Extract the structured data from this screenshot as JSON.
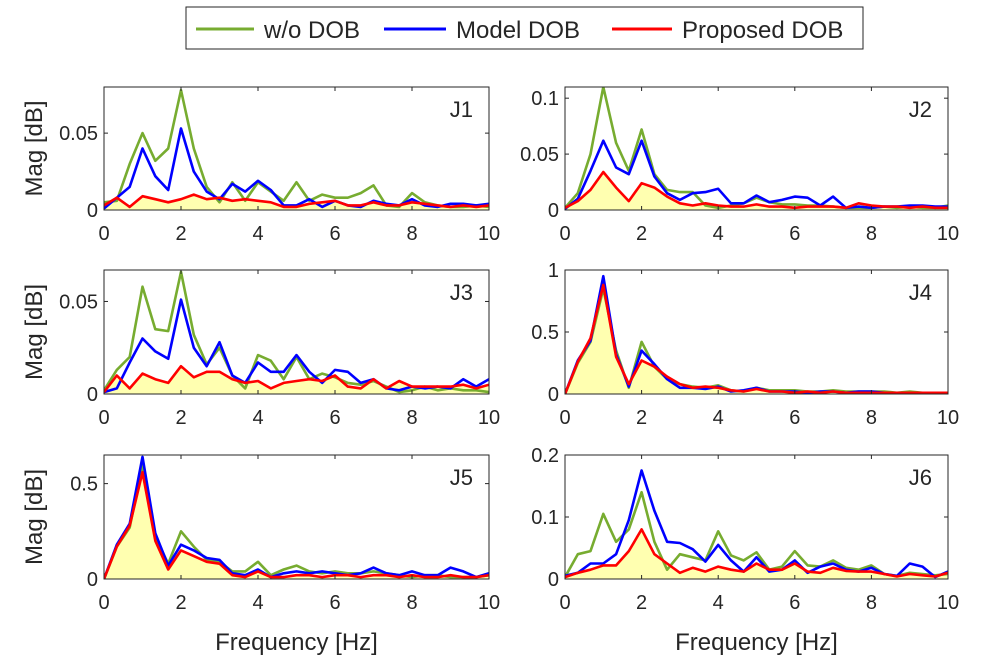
{
  "legend": {
    "entries": [
      {
        "name": "w/o DOB",
        "color": "#77AC30"
      },
      {
        "name": "Model DOB",
        "color": "#0000FF"
      },
      {
        "name": "Proposed DOB",
        "color": "#FF0000"
      }
    ]
  },
  "fill_color": "#FFFFB0",
  "chart_data": [
    {
      "type": "line",
      "panel": "J1",
      "ylabel": "Mag [dB]",
      "xlabel": "",
      "xlim": [
        0,
        10
      ],
      "ylim": [
        0,
        0.08
      ],
      "xticks": [
        0,
        2,
        4,
        6,
        8,
        10
      ],
      "yticks": [
        0,
        0.05
      ],
      "ytick_labels": [
        "0",
        "0.05"
      ],
      "x": [
        0,
        0.333,
        0.667,
        1,
        1.333,
        1.667,
        2,
        2.333,
        2.667,
        3,
        3.333,
        3.667,
        4,
        4.333,
        4.667,
        5,
        5.333,
        5.667,
        6,
        6.333,
        6.667,
        7,
        7.333,
        7.667,
        8,
        8.333,
        8.667,
        9,
        9.333,
        9.667,
        10
      ],
      "series": [
        {
          "name": "w/o DOB",
          "values": [
            0.005,
            0.006,
            0.03,
            0.05,
            0.032,
            0.04,
            0.078,
            0.04,
            0.015,
            0.005,
            0.018,
            0.006,
            0.018,
            0.012,
            0.006,
            0.018,
            0.006,
            0.01,
            0.008,
            0.008,
            0.011,
            0.016,
            0.003,
            0.002,
            0.011,
            0.005,
            0.003,
            0.002,
            0.002,
            0.003,
            0.002
          ]
        },
        {
          "name": "Model DOB",
          "values": [
            0.001,
            0.008,
            0.015,
            0.04,
            0.022,
            0.013,
            0.053,
            0.025,
            0.012,
            0.007,
            0.017,
            0.012,
            0.019,
            0.013,
            0.003,
            0.003,
            0.007,
            0.002,
            0.006,
            0.003,
            0.002,
            0.006,
            0.004,
            0.003,
            0.007,
            0.003,
            0.002,
            0.004,
            0.004,
            0.003,
            0.004
          ]
        },
        {
          "name": "Proposed DOB",
          "values": [
            0.003,
            0.008,
            0.002,
            0.009,
            0.007,
            0.005,
            0.007,
            0.01,
            0.007,
            0.008,
            0.006,
            0.007,
            0.006,
            0.005,
            0.002,
            0.002,
            0.004,
            0.005,
            0.006,
            0.003,
            0.003,
            0.005,
            0.003,
            0.003,
            0.005,
            0.004,
            0.003,
            0.002,
            0.003,
            0.002,
            0.003
          ]
        }
      ]
    },
    {
      "type": "line",
      "panel": "J2",
      "ylabel": "",
      "xlabel": "",
      "xlim": [
        0,
        10
      ],
      "ylim": [
        0,
        0.11
      ],
      "xticks": [
        0,
        2,
        4,
        6,
        8,
        10
      ],
      "yticks": [
        0,
        0.05,
        0.1
      ],
      "ytick_labels": [
        "0",
        "0.05",
        "0.1"
      ],
      "x": [
        0,
        0.333,
        0.667,
        1,
        1.333,
        1.667,
        2,
        2.333,
        2.667,
        3,
        3.333,
        3.667,
        4,
        4.333,
        4.667,
        5,
        5.333,
        5.667,
        6,
        6.333,
        6.667,
        7,
        7.333,
        7.667,
        8,
        8.333,
        8.667,
        9,
        9.333,
        9.667,
        10
      ],
      "series": [
        {
          "name": "w/o DOB",
          "values": [
            0.002,
            0.015,
            0.05,
            0.11,
            0.06,
            0.035,
            0.072,
            0.032,
            0.018,
            0.016,
            0.016,
            0.004,
            0.002,
            0.004,
            0.006,
            0.011,
            0.007,
            0.005,
            0.005,
            0.004,
            0.004,
            0.003,
            0.002,
            0.002,
            0.002,
            0.003,
            0.002,
            0.003,
            0.002,
            0.002,
            0.004
          ]
        },
        {
          "name": "Model DOB",
          "values": [
            0.001,
            0.01,
            0.035,
            0.062,
            0.038,
            0.032,
            0.062,
            0.03,
            0.015,
            0.009,
            0.015,
            0.016,
            0.019,
            0.006,
            0.006,
            0.013,
            0.007,
            0.009,
            0.012,
            0.011,
            0.004,
            0.012,
            0.002,
            0.003,
            0.002,
            0.003,
            0.003,
            0.004,
            0.004,
            0.003,
            0.003
          ]
        },
        {
          "name": "Proposed DOB",
          "values": [
            0.002,
            0.008,
            0.018,
            0.034,
            0.02,
            0.008,
            0.024,
            0.02,
            0.012,
            0.006,
            0.004,
            0.006,
            0.004,
            0.003,
            0.003,
            0.005,
            0.003,
            0.003,
            0.002,
            0.003,
            0.003,
            0.003,
            0.002,
            0.006,
            0.004,
            0.003,
            0.003,
            0.002,
            0.003,
            0.002,
            0.002
          ]
        }
      ]
    },
    {
      "type": "line",
      "panel": "J3",
      "ylabel": "Mag [dB]",
      "xlabel": "",
      "xlim": [
        0,
        10
      ],
      "ylim": [
        0,
        0.067
      ],
      "xticks": [
        0,
        2,
        4,
        6,
        8,
        10
      ],
      "yticks": [
        0,
        0.05
      ],
      "ytick_labels": [
        "0",
        "0.05"
      ],
      "x": [
        0,
        0.333,
        0.667,
        1,
        1.333,
        1.667,
        2,
        2.333,
        2.667,
        3,
        3.333,
        3.667,
        4,
        4.333,
        4.667,
        5,
        5.333,
        5.667,
        6,
        6.333,
        6.667,
        7,
        7.333,
        7.667,
        8,
        8.333,
        8.667,
        9,
        9.333,
        9.667,
        10
      ],
      "series": [
        {
          "name": "w/o DOB",
          "values": [
            0.002,
            0.013,
            0.02,
            0.058,
            0.035,
            0.034,
            0.066,
            0.032,
            0.016,
            0.025,
            0.01,
            0.003,
            0.021,
            0.018,
            0.008,
            0.02,
            0.008,
            0.011,
            0.009,
            0.006,
            0.005,
            0.007,
            0.004,
            0.001,
            0.002,
            0.004,
            0.002,
            0.003,
            0.002,
            0.002,
            0.001
          ]
        },
        {
          "name": "Model DOB",
          "values": [
            0.001,
            0.003,
            0.017,
            0.03,
            0.023,
            0.019,
            0.051,
            0.025,
            0.015,
            0.028,
            0.01,
            0.006,
            0.017,
            0.012,
            0.012,
            0.021,
            0.012,
            0.006,
            0.013,
            0.012,
            0.006,
            0.008,
            0.003,
            0.002,
            0.004,
            0.003,
            0.004,
            0.003,
            0.008,
            0.004,
            0.008
          ]
        },
        {
          "name": "Proposed DOB",
          "values": [
            0.001,
            0.01,
            0.003,
            0.011,
            0.008,
            0.006,
            0.015,
            0.009,
            0.012,
            0.012,
            0.008,
            0.006,
            0.007,
            0.003,
            0.006,
            0.007,
            0.008,
            0.007,
            0.01,
            0.004,
            0.003,
            0.008,
            0.003,
            0.007,
            0.004,
            0.004,
            0.004,
            0.004,
            0.005,
            0.003,
            0.005
          ]
        }
      ]
    },
    {
      "type": "line",
      "panel": "J4",
      "ylabel": "",
      "xlabel": "",
      "xlim": [
        0,
        10
      ],
      "ylim": [
        0,
        1
      ],
      "xticks": [
        0,
        2,
        4,
        6,
        8,
        10
      ],
      "yticks": [
        0,
        0.5,
        1
      ],
      "ytick_labels": [
        "0",
        "0.5",
        "1"
      ],
      "x": [
        0,
        0.333,
        0.667,
        1,
        1.333,
        1.667,
        2,
        2.333,
        2.667,
        3,
        3.333,
        3.667,
        4,
        4.333,
        4.667,
        5,
        5.333,
        5.667,
        6,
        6.333,
        6.667,
        7,
        7.333,
        7.667,
        8,
        8.333,
        8.667,
        9,
        9.333,
        9.667,
        10
      ],
      "series": [
        {
          "name": "w/o DOB",
          "values": [
            0,
            0.25,
            0.42,
            0.85,
            0.35,
            0.05,
            0.42,
            0.22,
            0.12,
            0.08,
            0.06,
            0.05,
            0.07,
            0.03,
            0.02,
            0.05,
            0.03,
            0.03,
            0.03,
            0.02,
            0.02,
            0.03,
            0.02,
            0.02,
            0.02,
            0.02,
            0.01,
            0.02,
            0.01,
            0.01,
            0.01
          ]
        },
        {
          "name": "Model DOB",
          "values": [
            0,
            0.27,
            0.43,
            0.95,
            0.32,
            0.06,
            0.35,
            0.24,
            0.12,
            0.05,
            0.05,
            0.04,
            0.06,
            0.02,
            0.03,
            0.05,
            0.02,
            0.02,
            0.02,
            0.01,
            0.02,
            0.02,
            0.01,
            0.02,
            0.02,
            0.01,
            0.01,
            0.01,
            0.01,
            0.01,
            0.01
          ]
        },
        {
          "name": "Proposed DOB",
          "values": [
            0,
            0.26,
            0.45,
            0.88,
            0.3,
            0.08,
            0.27,
            0.22,
            0.14,
            0.08,
            0.05,
            0.06,
            0.05,
            0.03,
            0.02,
            0.04,
            0.02,
            0.02,
            0.01,
            0.02,
            0.01,
            0.02,
            0.01,
            0.01,
            0.01,
            0.01,
            0.01,
            0.01,
            0.01,
            0.01,
            0.01
          ]
        }
      ]
    },
    {
      "type": "line",
      "panel": "J5",
      "ylabel": "Mag [dB]",
      "xlabel": "Frequency [Hz]",
      "xlim": [
        0,
        10
      ],
      "ylim": [
        0,
        0.65
      ],
      "xticks": [
        0,
        2,
        4,
        6,
        8,
        10
      ],
      "yticks": [
        0,
        0.5
      ],
      "ytick_labels": [
        "0",
        "0.5"
      ],
      "x": [
        0,
        0.333,
        0.667,
        1,
        1.333,
        1.667,
        2,
        2.333,
        2.667,
        3,
        3.333,
        3.667,
        4,
        4.333,
        4.667,
        5,
        5.333,
        5.667,
        6,
        6.333,
        6.667,
        7,
        7.333,
        7.667,
        8,
        8.333,
        8.667,
        9,
        9.333,
        9.667,
        10
      ],
      "series": [
        {
          "name": "w/o DOB",
          "values": [
            0,
            0.17,
            0.27,
            0.6,
            0.22,
            0.08,
            0.25,
            0.17,
            0.1,
            0.09,
            0.04,
            0.04,
            0.09,
            0.02,
            0.05,
            0.07,
            0.04,
            0.03,
            0.04,
            0.03,
            0.03,
            0.04,
            0.03,
            0.02,
            0.01,
            0.02,
            0.02,
            0.01,
            0.01,
            0.01,
            0.02
          ]
        },
        {
          "name": "Model DOB",
          "values": [
            0,
            0.18,
            0.29,
            0.64,
            0.24,
            0.07,
            0.18,
            0.15,
            0.11,
            0.1,
            0.03,
            0.02,
            0.05,
            0.01,
            0.03,
            0.04,
            0.03,
            0.04,
            0.03,
            0.02,
            0.03,
            0.06,
            0.03,
            0.02,
            0.04,
            0.02,
            0.02,
            0.06,
            0.04,
            0.01,
            0.03
          ]
        },
        {
          "name": "Proposed DOB",
          "values": [
            0,
            0.17,
            0.28,
            0.56,
            0.2,
            0.05,
            0.15,
            0.12,
            0.09,
            0.08,
            0.02,
            0.01,
            0.04,
            0.01,
            0.01,
            0.02,
            0.02,
            0.01,
            0.02,
            0.02,
            0.01,
            0.02,
            0.02,
            0.01,
            0.02,
            0.01,
            0.01,
            0.02,
            0.01,
            0.01,
            0.02
          ]
        }
      ]
    },
    {
      "type": "line",
      "panel": "J6",
      "ylabel": "",
      "xlabel": "Frequency [Hz]",
      "xlim": [
        0,
        10
      ],
      "ylim": [
        0,
        0.2
      ],
      "xticks": [
        0,
        2,
        4,
        6,
        8,
        10
      ],
      "yticks": [
        0,
        0.1,
        0.2
      ],
      "ytick_labels": [
        "0",
        "0.1",
        "0.2"
      ],
      "x": [
        0,
        0.333,
        0.667,
        1,
        1.333,
        1.667,
        2,
        2.333,
        2.667,
        3,
        3.333,
        3.667,
        4,
        4.333,
        4.667,
        5,
        5.333,
        5.667,
        6,
        6.333,
        6.667,
        7,
        7.333,
        7.667,
        8,
        8.333,
        8.667,
        9,
        9.333,
        9.667,
        10
      ],
      "series": [
        {
          "name": "w/o DOB",
          "values": [
            0.003,
            0.04,
            0.045,
            0.105,
            0.06,
            0.08,
            0.14,
            0.06,
            0.015,
            0.04,
            0.035,
            0.03,
            0.077,
            0.038,
            0.03,
            0.043,
            0.015,
            0.02,
            0.045,
            0.022,
            0.02,
            0.03,
            0.018,
            0.015,
            0.022,
            0.008,
            0.005,
            0.01,
            0.008,
            0.006,
            0.008
          ]
        },
        {
          "name": "Model DOB",
          "values": [
            0.005,
            0.01,
            0.025,
            0.025,
            0.04,
            0.095,
            0.175,
            0.11,
            0.06,
            0.058,
            0.048,
            0.028,
            0.055,
            0.03,
            0.012,
            0.035,
            0.012,
            0.015,
            0.03,
            0.01,
            0.02,
            0.025,
            0.015,
            0.012,
            0.018,
            0.008,
            0.005,
            0.025,
            0.02,
            0.003,
            0.012
          ]
        },
        {
          "name": "Proposed DOB",
          "values": [
            0.003,
            0.01,
            0.015,
            0.022,
            0.022,
            0.045,
            0.08,
            0.04,
            0.025,
            0.01,
            0.018,
            0.012,
            0.02,
            0.015,
            0.012,
            0.025,
            0.015,
            0.015,
            0.025,
            0.012,
            0.01,
            0.018,
            0.013,
            0.012,
            0.012,
            0.008,
            0.004,
            0.008,
            0.006,
            0.004,
            0.01
          ]
        }
      ]
    }
  ]
}
